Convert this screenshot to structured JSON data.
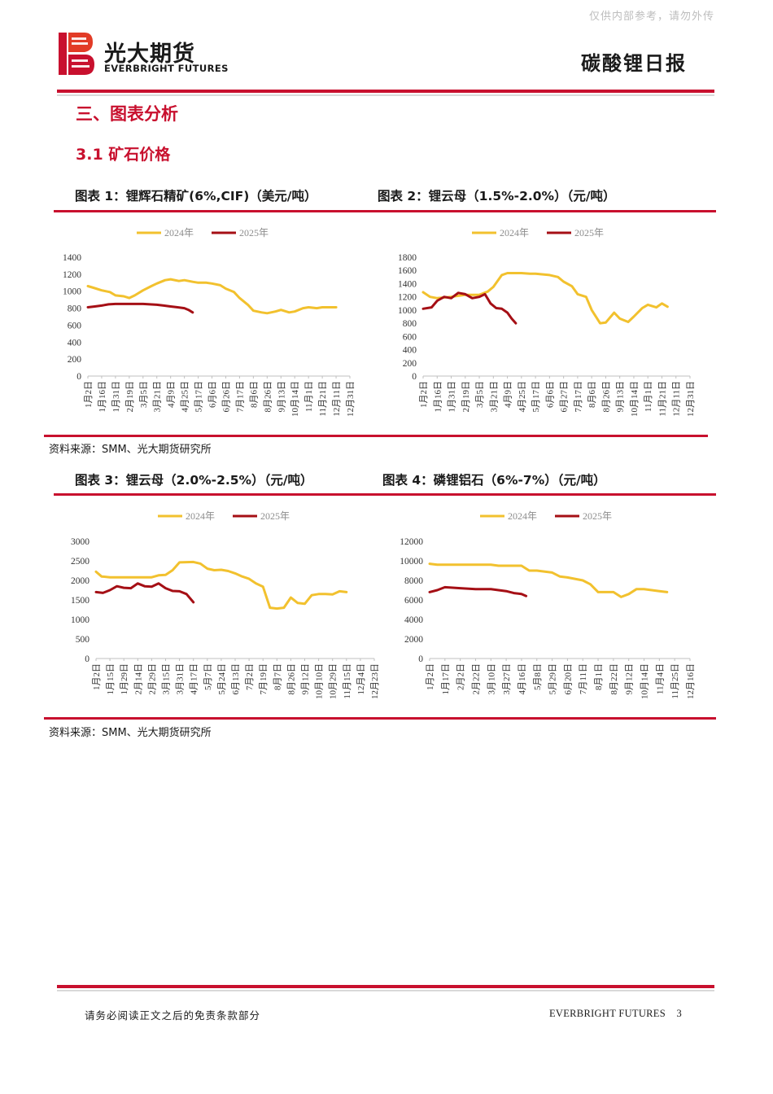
{
  "header": {
    "watermark": "仅供内部参考，请勿外传",
    "logo_cn": "光大期货",
    "logo_en": "EVERBRIGHT FUTURES",
    "report_title": "碳酸锂日报"
  },
  "section": {
    "title": "三、图表分析",
    "subtitle": "3.1 矿石价格"
  },
  "source_note": "资料来源：SMM、光大期货研究所",
  "footer": {
    "disclaimer": "请务必阅读正文之后的免责条款部分",
    "brand": "EVERBRIGHT FUTURES",
    "page": "3"
  },
  "colors": {
    "series_2024": "#f2c12e",
    "series_2025": "#a50f15",
    "accent_red": "#c8102e"
  },
  "chart_data": [
    {
      "type": "line",
      "title": "图表 1：锂辉石精矿(6%,CIF)（美元/吨）",
      "legend": [
        "2024年",
        "2025年"
      ],
      "ylim": [
        0,
        1400
      ],
      "yticks": [
        0,
        200,
        400,
        600,
        800,
        1000,
        1200,
        1400
      ],
      "xticks": [
        "1月2日",
        "1月16日",
        "1月31日",
        "2月19日",
        "3月5日",
        "3月21日",
        "4月9日",
        "4月25日",
        "5月17日",
        "6月6日",
        "6月26日",
        "7月17日",
        "8月6日",
        "8月26日",
        "9月13日",
        "10月14日",
        "11月1日",
        "11月21日",
        "12月11日",
        "12月31日"
      ],
      "series": [
        {
          "name": "2024年",
          "points": [
            [
              0,
              1060
            ],
            [
              0.4,
              1040
            ],
            [
              1,
              1010
            ],
            [
              1.6,
              990
            ],
            [
              2,
              950
            ],
            [
              2.6,
              940
            ],
            [
              3,
              920
            ],
            [
              3.4,
              950
            ],
            [
              4,
              1010
            ],
            [
              4.6,
              1060
            ],
            [
              5,
              1090
            ],
            [
              5.6,
              1130
            ],
            [
              6,
              1140
            ],
            [
              6.6,
              1120
            ],
            [
              7,
              1130
            ],
            [
              7.6,
              1110
            ],
            [
              8,
              1100
            ],
            [
              8.6,
              1100
            ],
            [
              9,
              1090
            ],
            [
              9.6,
              1070
            ],
            [
              10,
              1030
            ],
            [
              10.6,
              990
            ],
            [
              11,
              920
            ],
            [
              11.6,
              840
            ],
            [
              12,
              770
            ],
            [
              12.6,
              750
            ],
            [
              13,
              740
            ],
            [
              13.6,
              760
            ],
            [
              14,
              780
            ],
            [
              14.6,
              750
            ],
            [
              15,
              760
            ],
            [
              15.6,
              800
            ],
            [
              16,
              810
            ],
            [
              16.6,
              800
            ],
            [
              17,
              810
            ],
            [
              17.6,
              810
            ],
            [
              18,
              810
            ]
          ]
        },
        {
          "name": "2025年",
          "points": [
            [
              0,
              810
            ],
            [
              0.5,
              820
            ],
            [
              1,
              830
            ],
            [
              1.5,
              845
            ],
            [
              2,
              850
            ],
            [
              3,
              850
            ],
            [
              4,
              850
            ],
            [
              4.5,
              845
            ],
            [
              5,
              840
            ],
            [
              5.5,
              830
            ],
            [
              6,
              820
            ],
            [
              6.5,
              810
            ],
            [
              7,
              800
            ],
            [
              7.3,
              780
            ],
            [
              7.6,
              750
            ]
          ]
        }
      ]
    },
    {
      "type": "line",
      "title": "图表 2：锂云母（1.5%-2.0%）（元/吨）",
      "legend": [
        "2024年",
        "2025年"
      ],
      "ylim": [
        0,
        1800
      ],
      "yticks": [
        0,
        200,
        400,
        600,
        800,
        1000,
        1200,
        1400,
        1600,
        1800
      ],
      "xticks": [
        "1月2日",
        "1月16日",
        "1月31日",
        "2月19日",
        "3月5日",
        "3月21日",
        "4月9日",
        "4月25日",
        "5月17日",
        "6月6日",
        "6月27日",
        "7月17日",
        "8月6日",
        "8月26日",
        "9月13日",
        "10月14日",
        "11月1日",
        "11月21日",
        "12月11日",
        "12月31日"
      ],
      "series": [
        {
          "name": "2024年",
          "points": [
            [
              0,
              1270
            ],
            [
              0.5,
              1200
            ],
            [
              1,
              1180
            ],
            [
              2,
              1200
            ],
            [
              3,
              1230
            ],
            [
              4,
              1230
            ],
            [
              4.6,
              1280
            ],
            [
              5,
              1350
            ],
            [
              5.6,
              1530
            ],
            [
              6,
              1560
            ],
            [
              7,
              1560
            ],
            [
              7.6,
              1550
            ],
            [
              8,
              1550
            ],
            [
              9,
              1530
            ],
            [
              9.6,
              1500
            ],
            [
              10,
              1430
            ],
            [
              10.6,
              1360
            ],
            [
              11,
              1240
            ],
            [
              11.6,
              1200
            ],
            [
              12,
              1000
            ],
            [
              12.6,
              800
            ],
            [
              13,
              810
            ],
            [
              13.6,
              960
            ],
            [
              14,
              870
            ],
            [
              14.6,
              820
            ],
            [
              15,
              900
            ],
            [
              15.6,
              1030
            ],
            [
              16,
              1080
            ],
            [
              16.6,
              1040
            ],
            [
              17,
              1100
            ],
            [
              17.4,
              1050
            ]
          ]
        },
        {
          "name": "2025年",
          "points": [
            [
              0,
              1020
            ],
            [
              0.6,
              1040
            ],
            [
              1,
              1140
            ],
            [
              1.5,
              1200
            ],
            [
              2,
              1180
            ],
            [
              2.5,
              1260
            ],
            [
              3,
              1240
            ],
            [
              3.5,
              1180
            ],
            [
              4,
              1200
            ],
            [
              4.4,
              1240
            ],
            [
              4.8,
              1100
            ],
            [
              5.2,
              1030
            ],
            [
              5.6,
              1020
            ],
            [
              6,
              960
            ],
            [
              6.3,
              870
            ],
            [
              6.6,
              800
            ]
          ]
        }
      ]
    },
    {
      "type": "line",
      "title": "图表 3：锂云母（2.0%-2.5%）（元/吨）",
      "legend": [
        "2024年",
        "2025年"
      ],
      "ylim": [
        0,
        3000
      ],
      "yticks": [
        0,
        500,
        1000,
        1500,
        2000,
        2500,
        3000
      ],
      "xticks": [
        "1月2日",
        "1月15日",
        "1月29日",
        "2月14日",
        "2月29日",
        "3月15日",
        "3月31日",
        "4月17日",
        "5月7日",
        "5月24日",
        "6月13日",
        "7月2日",
        "7月19日",
        "8月7日",
        "8月26日",
        "9月12日",
        "10月10日",
        "10月29日",
        "11月15日",
        "12月4日",
        "12月23日"
      ],
      "series": [
        {
          "name": "2024年",
          "points": [
            [
              0,
              2220
            ],
            [
              0.4,
              2100
            ],
            [
              1,
              2080
            ],
            [
              2,
              2080
            ],
            [
              3,
              2080
            ],
            [
              4,
              2080
            ],
            [
              4.5,
              2130
            ],
            [
              5,
              2140
            ],
            [
              5.5,
              2260
            ],
            [
              6,
              2460
            ],
            [
              7,
              2470
            ],
            [
              7.5,
              2430
            ],
            [
              8,
              2300
            ],
            [
              8.5,
              2260
            ],
            [
              9,
              2270
            ],
            [
              9.5,
              2240
            ],
            [
              10,
              2180
            ],
            [
              10.5,
              2100
            ],
            [
              11,
              2040
            ],
            [
              11.5,
              1920
            ],
            [
              12,
              1840
            ],
            [
              12.5,
              1300
            ],
            [
              13,
              1280
            ],
            [
              13.5,
              1300
            ],
            [
              14,
              1560
            ],
            [
              14.5,
              1420
            ],
            [
              15,
              1400
            ],
            [
              15.5,
              1620
            ],
            [
              16,
              1650
            ],
            [
              16.5,
              1650
            ],
            [
              17,
              1640
            ],
            [
              17.5,
              1720
            ],
            [
              18,
              1700
            ]
          ]
        },
        {
          "name": "2025年",
          "points": [
            [
              0,
              1700
            ],
            [
              0.5,
              1680
            ],
            [
              1,
              1750
            ],
            [
              1.5,
              1850
            ],
            [
              2,
              1810
            ],
            [
              2.5,
              1800
            ],
            [
              3,
              1920
            ],
            [
              3.5,
              1850
            ],
            [
              4,
              1840
            ],
            [
              4.5,
              1920
            ],
            [
              5,
              1800
            ],
            [
              5.5,
              1730
            ],
            [
              6,
              1720
            ],
            [
              6.5,
              1650
            ],
            [
              7,
              1440
            ]
          ]
        }
      ]
    },
    {
      "type": "line",
      "title": "图表 4：磷锂铝石（6%-7%）（元/吨）",
      "legend": [
        "2024年",
        "2025年"
      ],
      "ylim": [
        0,
        12000
      ],
      "yticks": [
        0,
        2000,
        4000,
        6000,
        8000,
        10000,
        12000
      ],
      "xticks": [
        "1月2日",
        "1月17日",
        "2月2日",
        "2月22日",
        "3月10日",
        "3月27日",
        "4月16日",
        "5月8日",
        "5月29日",
        "6月20日",
        "7月11日",
        "8月1日",
        "8月22日",
        "9月12日",
        "10月14日",
        "11月4日",
        "11月25日",
        "12月16日"
      ],
      "series": [
        {
          "name": "2024年",
          "points": [
            [
              0,
              9700
            ],
            [
              0.5,
              9600
            ],
            [
              1,
              9600
            ],
            [
              2,
              9600
            ],
            [
              3,
              9600
            ],
            [
              4,
              9600
            ],
            [
              4.5,
              9500
            ],
            [
              5,
              9500
            ],
            [
              6,
              9500
            ],
            [
              6.5,
              9000
            ],
            [
              7,
              9000
            ],
            [
              8,
              8800
            ],
            [
              8.5,
              8400
            ],
            [
              9,
              8300
            ],
            [
              10,
              8000
            ],
            [
              10.5,
              7600
            ],
            [
              11,
              6800
            ],
            [
              12,
              6800
            ],
            [
              12.5,
              6300
            ],
            [
              13,
              6600
            ],
            [
              13.5,
              7100
            ],
            [
              14,
              7100
            ],
            [
              15,
              6900
            ],
            [
              15.5,
              6800
            ]
          ]
        },
        {
          "name": "2025年",
          "points": [
            [
              0,
              6800
            ],
            [
              0.5,
              7000
            ],
            [
              1,
              7300
            ],
            [
              2,
              7200
            ],
            [
              3,
              7100
            ],
            [
              4,
              7100
            ],
            [
              4.5,
              7000
            ],
            [
              5,
              6900
            ],
            [
              5.5,
              6700
            ],
            [
              6,
              6600
            ],
            [
              6.3,
              6400
            ]
          ]
        }
      ]
    }
  ]
}
